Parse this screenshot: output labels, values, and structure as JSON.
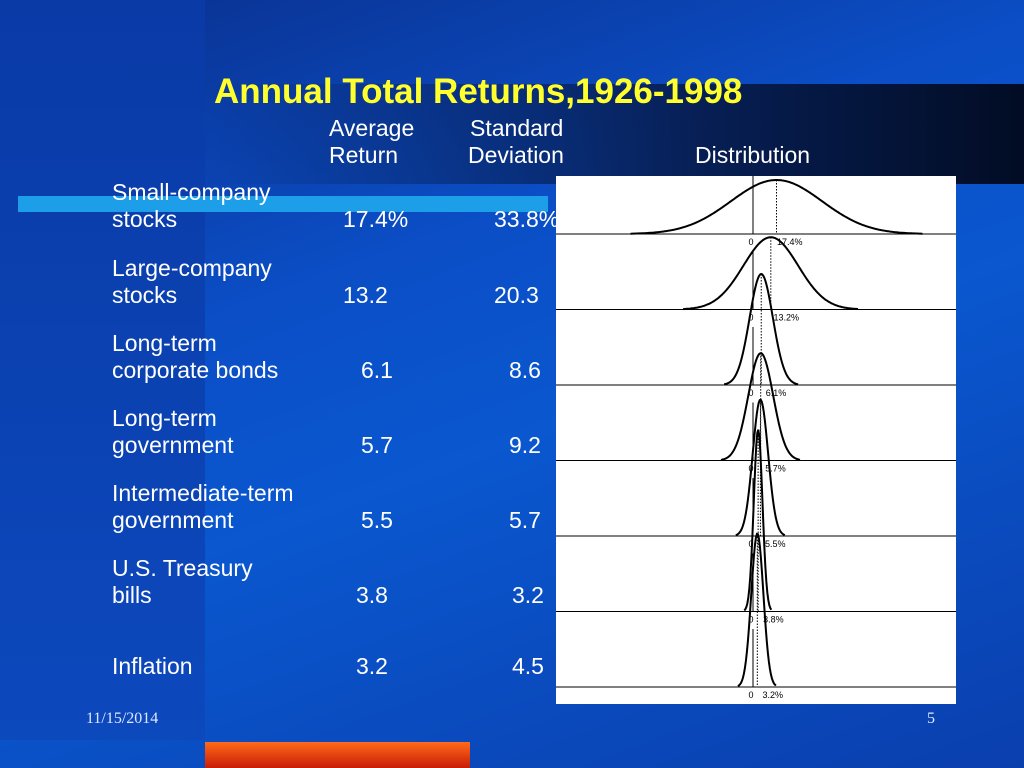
{
  "title": "Annual Total Returns,1926-1998",
  "headers": {
    "avg_line1": "Average",
    "avg_line2": "Return",
    "sd_line1": "Standard",
    "sd_line2": "Deviation",
    "dist": "Distribution"
  },
  "rows": [
    {
      "label1": "Small-company",
      "label2": "stocks",
      "avg": "17.4%",
      "sd": "33.8%",
      "mean": 17.4,
      "stdev": 33.8,
      "zero_label": "0",
      "mean_label": "17.4%"
    },
    {
      "label1": "Large-company",
      "label2": "stocks",
      "avg": "13.2",
      "sd": "20.3",
      "mean": 13.2,
      "stdev": 20.3,
      "zero_label": "0",
      "mean_label": "13.2%"
    },
    {
      "label1": "Long-term",
      "label2": "corporate bonds",
      "avg": "6.1",
      "sd": "8.6",
      "mean": 6.1,
      "stdev": 8.6,
      "zero_label": "0",
      "mean_label": "6.1%"
    },
    {
      "label1": "Long-term",
      "label2": "government",
      "avg": "5.7",
      "sd": "9.2",
      "mean": 5.7,
      "stdev": 9.2,
      "zero_label": "0",
      "mean_label": "5.7%"
    },
    {
      "label1": "Intermediate-term",
      "label2": "government",
      "avg": "5.5",
      "sd": "5.7",
      "mean": 5.5,
      "stdev": 5.7,
      "zero_label": "0",
      "mean_label": "5.5%"
    },
    {
      "label1": "U.S. Treasury",
      "label2": "bills",
      "avg": "3.8",
      "sd": "3.2",
      "mean": 3.8,
      "stdev": 3.2,
      "zero_label": "0",
      "mean_label": "3.8%"
    },
    {
      "label1": "",
      "label2": "Inflation",
      "avg": "3.2",
      "sd": "4.5",
      "mean": 3.2,
      "stdev": 4.5,
      "zero_label": "0",
      "mean_label": "3.2%"
    }
  ],
  "footer": {
    "date": "11/15/2014",
    "page": "5"
  },
  "colors": {
    "background": "#0b4ec6",
    "title": "#ffff2e",
    "text": "#ffffff",
    "accent_cyan": "#1c9ee8",
    "accent_orange": "#e83a10",
    "distribution_panel": "#ffffff"
  }
}
